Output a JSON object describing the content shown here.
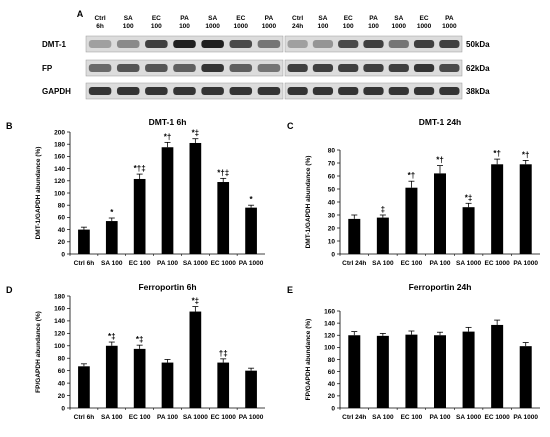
{
  "panel_a": {
    "letter": "A",
    "left_lanes": [
      [
        "Ctrl",
        "6h"
      ],
      [
        "SA",
        "100"
      ],
      [
        "EC",
        "100"
      ],
      [
        "PA",
        "100"
      ],
      [
        "SA",
        "1000"
      ],
      [
        "EC",
        "1000"
      ],
      [
        "PA",
        "1000"
      ]
    ],
    "right_lanes": [
      [
        "Ctrl",
        "24h"
      ],
      [
        "SA",
        "100"
      ],
      [
        "EC",
        "100"
      ],
      [
        "PA",
        "100"
      ],
      [
        "SA",
        "1000"
      ],
      [
        "EC",
        "1000"
      ],
      [
        "PA",
        "1000"
      ]
    ],
    "rows": [
      {
        "label": "DMT-1",
        "size": "50kDa"
      },
      {
        "label": "FP",
        "size": "62kDa"
      },
      {
        "label": "GAPDH",
        "size": "38kDa"
      }
    ],
    "band_intensity": {
      "left": [
        [
          0.35,
          0.45,
          0.8,
          0.95,
          0.95,
          0.75,
          0.55
        ],
        [
          0.6,
          0.7,
          0.7,
          0.65,
          0.85,
          0.65,
          0.55
        ],
        [
          0.85,
          0.85,
          0.85,
          0.85,
          0.85,
          0.85,
          0.85
        ]
      ],
      "right": [
        [
          0.35,
          0.4,
          0.75,
          0.8,
          0.55,
          0.8,
          0.8
        ],
        [
          0.8,
          0.8,
          0.8,
          0.8,
          0.8,
          0.85,
          0.75
        ],
        [
          0.85,
          0.85,
          0.85,
          0.85,
          0.85,
          0.85,
          0.85
        ]
      ]
    }
  },
  "chart_data": [
    {
      "letter": "B",
      "type": "bar",
      "title": "DMT-1 6h",
      "ylabel": "DMT-1/GAPDH abundance (%)",
      "categories": [
        "Ctrl 6h",
        "SA 100",
        "EC 100",
        "PA 100",
        "SA 1000",
        "EC 1000",
        "PA 1000"
      ],
      "values": [
        40,
        54,
        123,
        175,
        182,
        118,
        76
      ],
      "errors": [
        4,
        5,
        8,
        8,
        7,
        6,
        4
      ],
      "annotations": [
        "",
        "*",
        "*†‡",
        "*†",
        "*‡",
        "*†‡",
        "*"
      ],
      "ylim": [
        0,
        200
      ],
      "yticks": [
        0,
        20,
        40,
        60,
        80,
        100,
        120,
        140,
        160,
        180,
        200
      ],
      "color": "#000000"
    },
    {
      "letter": "C",
      "type": "bar",
      "title": "DMT-1 24h",
      "ylabel": "DMT-1/GAPDH abundance (%)",
      "categories": [
        "Ctrl 24h",
        "SA 100",
        "EC 100",
        "PA 100",
        "SA 1000",
        "EC 1000",
        "PA 1000"
      ],
      "values": [
        27,
        28,
        51,
        62,
        36,
        69,
        69
      ],
      "errors": [
        3,
        2,
        5,
        6,
        3,
        4,
        3
      ],
      "annotations": [
        "",
        "‡",
        "*†",
        "*†",
        "*‡",
        "*†",
        "*†"
      ],
      "ylim": [
        0,
        80
      ],
      "yticks": [
        0,
        10,
        20,
        30,
        40,
        50,
        60,
        70,
        80
      ],
      "color": "#000000"
    },
    {
      "letter": "D",
      "type": "bar",
      "title": "Ferroportin 6h",
      "ylabel": "FP/GAPDH abundance (%)",
      "categories": [
        "Ctrl 6h",
        "SA 100",
        "EC 100",
        "PA 100",
        "SA 1000",
        "EC 1000",
        "PA 1000"
      ],
      "values": [
        67,
        100,
        95,
        73,
        155,
        73,
        60
      ],
      "errors": [
        4,
        6,
        6,
        5,
        8,
        6,
        4
      ],
      "annotations": [
        "",
        "*‡",
        "*‡",
        "",
        "*‡",
        "†‡",
        ""
      ],
      "ylim": [
        0,
        180
      ],
      "yticks": [
        0,
        20,
        40,
        60,
        80,
        100,
        120,
        140,
        160,
        180
      ],
      "color": "#000000"
    },
    {
      "letter": "E",
      "type": "bar",
      "title": "Ferroportin 24h",
      "ylabel": "FP/GAPDH abundance (%)",
      "categories": [
        "Ctrl 24h",
        "SA 100",
        "EC 100",
        "PA 100",
        "SA 1000",
        "EC 1000",
        "PA 1000"
      ],
      "values": [
        120,
        119,
        121,
        120,
        126,
        137,
        102
      ],
      "errors": [
        6,
        4,
        6,
        5,
        7,
        8,
        6
      ],
      "annotations": [
        "",
        "",
        "",
        "",
        "",
        "",
        ""
      ],
      "ylim": [
        0,
        160
      ],
      "yticks": [
        0,
        20,
        40,
        60,
        80,
        100,
        120,
        140,
        160
      ],
      "color": "#000000"
    }
  ]
}
